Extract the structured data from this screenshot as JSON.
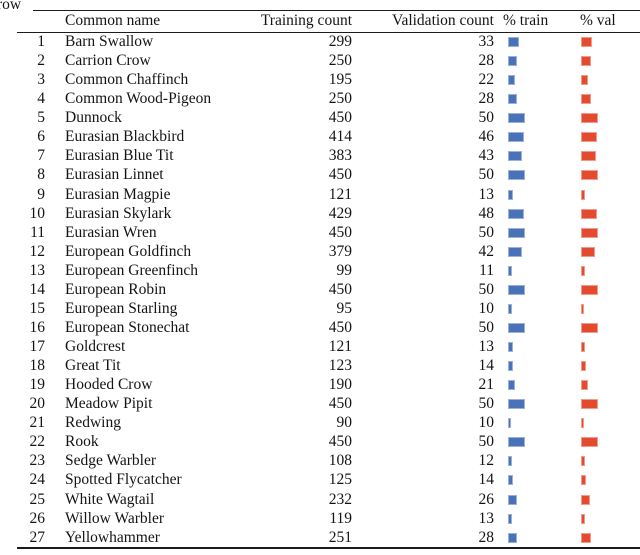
{
  "caption_fragment": "row",
  "colors": {
    "train_bar": "#4a72b8",
    "val_bar": "#e34a2e",
    "rule": "#1c1c1c",
    "text": "#141414"
  },
  "table": {
    "headers": {
      "index": "",
      "name": "Common name",
      "train": "Training count",
      "val": "Validation count",
      "ptrain": "% train",
      "pval": "% val"
    },
    "scale": {
      "max_train": 450,
      "max_val": 50
    },
    "rows": [
      {
        "n": 1,
        "name": "Barn Swallow",
        "train": 299,
        "val": 33
      },
      {
        "n": 2,
        "name": "Carrion Crow",
        "train": 250,
        "val": 28
      },
      {
        "n": 3,
        "name": "Common Chaffinch",
        "train": 195,
        "val": 22
      },
      {
        "n": 4,
        "name": "Common Wood-Pigeon",
        "train": 250,
        "val": 28
      },
      {
        "n": 5,
        "name": "Dunnock",
        "train": 450,
        "val": 50
      },
      {
        "n": 6,
        "name": "Eurasian Blackbird",
        "train": 414,
        "val": 46
      },
      {
        "n": 7,
        "name": "Eurasian Blue Tit",
        "train": 383,
        "val": 43
      },
      {
        "n": 8,
        "name": "Eurasian Linnet",
        "train": 450,
        "val": 50
      },
      {
        "n": 9,
        "name": "Eurasian Magpie",
        "train": 121,
        "val": 13
      },
      {
        "n": 10,
        "name": "Eurasian Skylark",
        "train": 429,
        "val": 48
      },
      {
        "n": 11,
        "name": "Eurasian Wren",
        "train": 450,
        "val": 50
      },
      {
        "n": 12,
        "name": "European Goldfinch",
        "train": 379,
        "val": 42
      },
      {
        "n": 13,
        "name": "European Greenfinch",
        "train": 99,
        "val": 11
      },
      {
        "n": 14,
        "name": "European Robin",
        "train": 450,
        "val": 50
      },
      {
        "n": 15,
        "name": "European Starling",
        "train": 95,
        "val": 10
      },
      {
        "n": 16,
        "name": "European Stonechat",
        "train": 450,
        "val": 50
      },
      {
        "n": 17,
        "name": "Goldcrest",
        "train": 121,
        "val": 13
      },
      {
        "n": 18,
        "name": "Great Tit",
        "train": 123,
        "val": 14
      },
      {
        "n": 19,
        "name": "Hooded Crow",
        "train": 190,
        "val": 21
      },
      {
        "n": 20,
        "name": "Meadow Pipit",
        "train": 450,
        "val": 50
      },
      {
        "n": 21,
        "name": "Redwing",
        "train": 90,
        "val": 10
      },
      {
        "n": 22,
        "name": "Rook",
        "train": 450,
        "val": 50
      },
      {
        "n": 23,
        "name": "Sedge Warbler",
        "train": 108,
        "val": 12
      },
      {
        "n": 24,
        "name": "Spotted Flycatcher",
        "train": 125,
        "val": 14
      },
      {
        "n": 25,
        "name": "White Wagtail",
        "train": 232,
        "val": 26
      },
      {
        "n": 26,
        "name": "Willow Warbler",
        "train": 119,
        "val": 13
      },
      {
        "n": 27,
        "name": "Yellowhammer",
        "train": 251,
        "val": 28
      }
    ]
  }
}
